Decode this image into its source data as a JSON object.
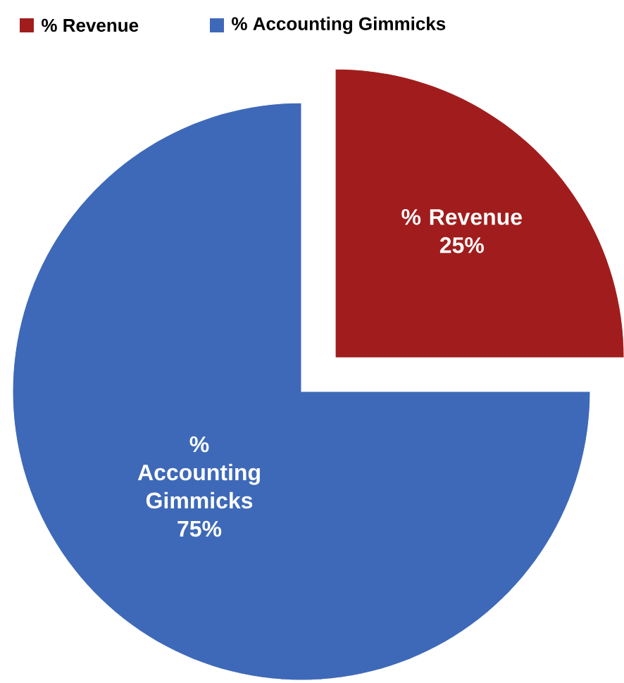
{
  "chart_data": {
    "type": "pie",
    "categories": [
      "% Revenue",
      "% Accounting Gimmicks"
    ],
    "values": [
      25,
      75
    ],
    "colors": [
      "#a11d1d",
      "#3e69b8"
    ],
    "value_labels": [
      "25%",
      "75%"
    ],
    "legend": "top"
  }
}
